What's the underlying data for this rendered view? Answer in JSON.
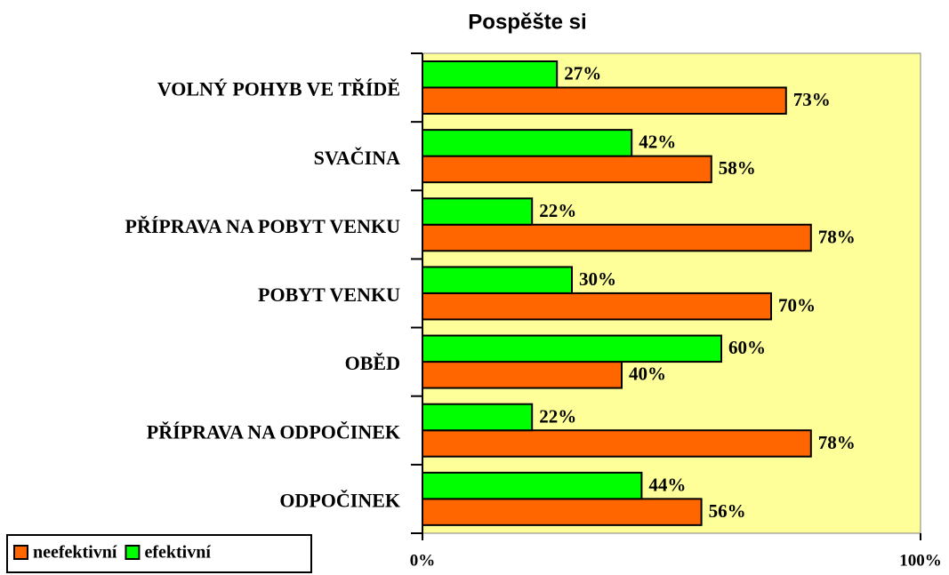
{
  "chart_data": {
    "type": "barh",
    "title": "Pospěšte si",
    "categories": [
      "VOLNÝ POHYB VE TŘÍDĚ",
      "SVAČINA",
      "PŘÍPRAVA NA POBYT VENKU",
      "POBYT VENKU",
      "OBĚD",
      "PŘÍPRAVA NA ODPOČINEK",
      "ODPOČINEK"
    ],
    "series": [
      {
        "name": "neefektivní",
        "color": "#ff6600",
        "values": [
          73,
          58,
          78,
          70,
          40,
          78,
          56
        ],
        "value_labels": [
          "73%",
          "58%",
          "78%",
          "70%",
          "40%",
          "78%",
          "56%"
        ]
      },
      {
        "name": "efektivní",
        "color": "#00ff00",
        "values": [
          27,
          42,
          22,
          30,
          60,
          22,
          44
        ],
        "value_labels": [
          "27%",
          "42%",
          "22%",
          "30%",
          "60%",
          "22%",
          "44%"
        ]
      }
    ],
    "xlim": [
      0,
      100
    ],
    "xticks": [
      {
        "value": 0,
        "label": "0%"
      },
      {
        "value": 100,
        "label": "100%"
      }
    ],
    "legend": "bottom-left",
    "plot_background": "#ffff99"
  }
}
